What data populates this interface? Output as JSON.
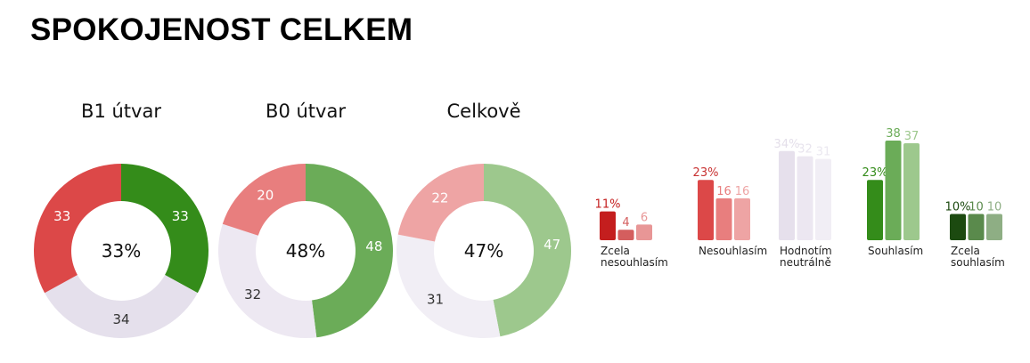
{
  "header": {
    "title": "SPOKOJENOST CELKEM"
  },
  "chart_data": [
    {
      "type": "pie",
      "variant": "donut",
      "title": "B1 útvar",
      "center_label": "33%",
      "slices": [
        {
          "label": "Souhlasím",
          "value": 33,
          "color": "#348c1a"
        },
        {
          "label": "Hodnotím neutrálně",
          "value": 34,
          "color": "#e5e0ec"
        },
        {
          "label": "Nesouhlasím",
          "value": 33,
          "color": "#dc4848"
        }
      ]
    },
    {
      "type": "pie",
      "variant": "donut",
      "title": "B0 útvar",
      "center_label": "48%",
      "slices": [
        {
          "label": "Souhlasím",
          "value": 48,
          "color": "#6bac58"
        },
        {
          "label": "Hodnotím neutrálně",
          "value": 32,
          "color": "#ede8f2"
        },
        {
          "label": "Nesouhlasím",
          "value": 20,
          "color": "#e87e7e"
        }
      ]
    },
    {
      "type": "pie",
      "variant": "donut",
      "title": "Celkově",
      "center_label": "47%",
      "slices": [
        {
          "label": "Souhlasím",
          "value": 47,
          "color": "#9dc88d"
        },
        {
          "label": "Hodnotím neutrálně",
          "value": 31,
          "color": "#f1eef5"
        },
        {
          "label": "Nesouhlasím",
          "value": 22,
          "color": "#eea4a4"
        }
      ]
    },
    {
      "type": "bar",
      "ylim": [
        0,
        40
      ],
      "groups": [
        {
          "label": "Zcela nesouhlasím",
          "label_lines": [
            "Zcela",
            "nesouhlasím"
          ],
          "bars": [
            {
              "value": 11,
              "display": "11%",
              "color": "#c41e1e",
              "label_color": "#c41e1e"
            },
            {
              "value": 4,
              "display": "4",
              "color": "#d45e5e",
              "label_color": "#d45e5e"
            },
            {
              "value": 6,
              "display": "6",
              "color": "#e89696",
              "label_color": "#e89696"
            }
          ]
        },
        {
          "label": "Nesouhlasím",
          "label_lines": [
            "Nesouhlasím"
          ],
          "bars": [
            {
              "value": 23,
              "display": "23%",
              "color": "#dc4848",
              "label_color": "#c83232"
            },
            {
              "value": 16,
              "display": "16",
              "color": "#e87e7e",
              "label_color": "#e87e7e"
            },
            {
              "value": 16,
              "display": "16",
              "color": "#eea4a4",
              "label_color": "#eea4a4"
            }
          ]
        },
        {
          "label": "Hodnotím neutrálně",
          "label_lines": [
            "Hodnotím",
            "neutrálně"
          ],
          "bars": [
            {
              "value": 34,
              "display": "34%",
              "color": "#e6e0ec",
              "label_color": "#e4dfea"
            },
            {
              "value": 32,
              "display": "32",
              "color": "#ece7f1",
              "label_color": "#e8e4ee"
            },
            {
              "value": 31,
              "display": "31",
              "color": "#f1eef5",
              "label_color": "#ebe8f0"
            }
          ]
        },
        {
          "label": "Souhlasím",
          "label_lines": [
            "Souhlasím"
          ],
          "bars": [
            {
              "value": 23,
              "display": "23%",
              "color": "#348c1a",
              "label_color": "#348c1a"
            },
            {
              "value": 38,
              "display": "38",
              "color": "#6bac58",
              "label_color": "#6bac58"
            },
            {
              "value": 37,
              "display": "37",
              "color": "#9dc88d",
              "label_color": "#9dc88d"
            }
          ]
        },
        {
          "label": "Zcela souhlasím",
          "label_lines": [
            "Zcela",
            "souhlasím"
          ],
          "bars": [
            {
              "value": 10,
              "display": "10%",
              "color": "#1c4a10",
              "label_color": "#1c4a10"
            },
            {
              "value": 10,
              "display": "10",
              "color": "#5a8a4c",
              "label_color": "#5a8a4c"
            },
            {
              "value": 10,
              "display": "10",
              "color": "#8eae84",
              "label_color": "#8eae84"
            }
          ]
        }
      ]
    }
  ]
}
